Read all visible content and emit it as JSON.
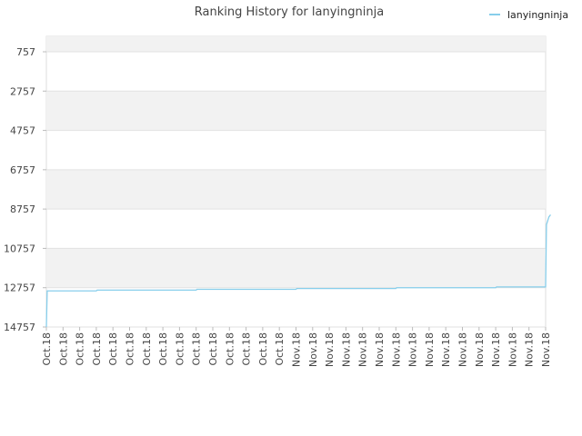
{
  "chart_data": {
    "type": "line",
    "title": "Ranking History for lanyingninja",
    "legend": {
      "position": "top-right",
      "entries": [
        "lanyingninja"
      ]
    },
    "y_axis": {
      "reversed": true,
      "ylim": [
        757,
        14757
      ],
      "tick_values": [
        757,
        2757,
        4757,
        6757,
        8757,
        10757,
        12757,
        14757
      ],
      "tick_labels": [
        "757",
        "2757",
        "4757",
        "6757",
        "8757",
        "10757",
        "12757",
        "14757"
      ]
    },
    "x_axis": {
      "tick_labels": [
        "Oct.18",
        "Oct.18",
        "Oct.18",
        "Oct.18",
        "Oct.18",
        "Oct.18",
        "Oct.18",
        "Oct.18",
        "Oct.18",
        "Oct.18",
        "Oct.18",
        "Oct.18",
        "Oct.18",
        "Oct.18",
        "Oct.18",
        "Nov.18",
        "Nov.18",
        "Nov.18",
        "Nov.18",
        "Nov.18",
        "Nov.18",
        "Nov.18",
        "Nov.18",
        "Nov.18",
        "Nov.18",
        "Nov.18",
        "Nov.18",
        "Nov.18",
        "Nov.18",
        "Nov.18",
        "Nov.18"
      ]
    },
    "grid": true,
    "band_color": "#f2f2f2",
    "series": [
      {
        "name": "lanyingninja",
        "color": "#87ceeb",
        "points": [
          [
            0.0,
            14757
          ],
          [
            0.05,
            12920
          ],
          [
            3.0,
            12920
          ],
          [
            3.05,
            12880
          ],
          [
            9.0,
            12880
          ],
          [
            9.05,
            12840
          ],
          [
            15.0,
            12840
          ],
          [
            15.05,
            12800
          ],
          [
            21.0,
            12800
          ],
          [
            21.05,
            12760
          ],
          [
            27.0,
            12760
          ],
          [
            27.05,
            12720
          ],
          [
            30.0,
            12720
          ],
          [
            30.05,
            9550
          ],
          [
            30.2,
            9150
          ],
          [
            30.3,
            9050
          ]
        ]
      }
    ]
  }
}
